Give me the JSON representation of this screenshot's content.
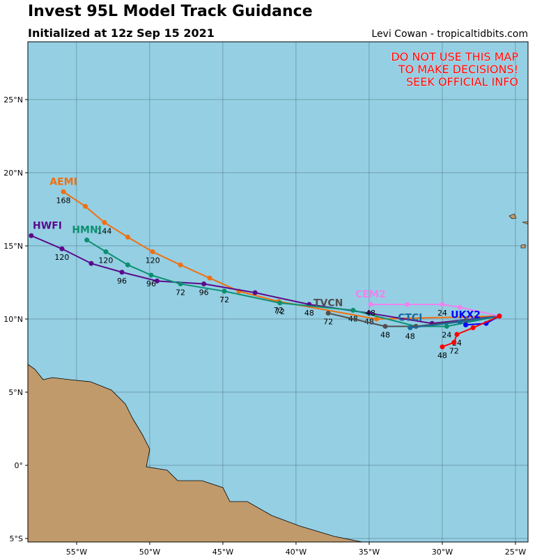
{
  "header": {
    "title": "Invest 95L Model Track Guidance",
    "subtitle": "Initialized at 12z Sep 15 2021",
    "credit": "Levi Cowan - tropicaltidbits.com"
  },
  "warning": [
    "DO NOT USE THIS MAP",
    "TO MAKE DECISIONS!",
    "SEEK OFFICIAL INFO"
  ],
  "map": {
    "lon_range": [
      -58.33,
      -24.14
    ],
    "lat_range": [
      -5.24,
      28.95
    ],
    "lon_ticks": [
      {
        "value": -55,
        "label": "55°W"
      },
      {
        "value": -50,
        "label": "50°W"
      },
      {
        "value": -45,
        "label": "45°W"
      },
      {
        "value": -40,
        "label": "40°W"
      },
      {
        "value": -35,
        "label": "35°W"
      },
      {
        "value": -30,
        "label": "30°W"
      },
      {
        "value": -25,
        "label": "25°W"
      }
    ],
    "lat_ticks": [
      {
        "value": -5,
        "label": "5°S"
      },
      {
        "value": 0,
        "label": "0°"
      },
      {
        "value": 5,
        "label": "5°N"
      },
      {
        "value": 10,
        "label": "10°N"
      },
      {
        "value": 15,
        "label": "15°N"
      },
      {
        "value": 20,
        "label": "20°N"
      },
      {
        "value": 25,
        "label": "25°N"
      }
    ]
  },
  "tracks": [
    {
      "name": "AEMI",
      "color": "#f07010",
      "lon": [
        -26.1,
        -34.5,
        -41.2,
        -43.9,
        -45.9,
        -47.9,
        -49.8,
        -51.5,
        -53.1,
        -54.4,
        -55.9
      ],
      "lat": [
        10.2,
        10.0,
        11.2,
        11.9,
        12.8,
        13.7,
        14.6,
        15.6,
        16.6,
        17.7,
        18.7
      ],
      "hour_labels": [
        null,
        null,
        "72",
        null,
        null,
        null,
        "120",
        null,
        "144",
        null,
        "168"
      ]
    },
    {
      "name": "HWFI",
      "color": "#5a0a8c",
      "lon": [
        -26.1,
        -30.7,
        -35.0,
        -39.1,
        -42.8,
        -46.3,
        -49.5,
        -51.9,
        -54.0,
        -56.0,
        -58.1
      ],
      "lat": [
        10.2,
        9.7,
        10.4,
        11.0,
        11.8,
        12.4,
        12.6,
        13.2,
        13.8,
        14.8,
        15.7
      ],
      "hour_labels": [
        null,
        null,
        "48",
        "48",
        null,
        "96",
        null,
        "96",
        null,
        "120",
        null
      ]
    },
    {
      "name": "HMNI",
      "color": "#0a9070",
      "lon": [
        -26.1,
        -29.7,
        -31.8,
        -36.1,
        -41.1,
        -44.9,
        -47.9,
        -49.9,
        -51.5,
        -53.0,
        -54.3
      ],
      "lat": [
        10.2,
        9.5,
        9.5,
        10.6,
        11.1,
        11.9,
        12.4,
        13.0,
        13.7,
        14.6,
        15.4
      ],
      "hour_labels": [
        null,
        "24",
        null,
        "48",
        "72",
        "72",
        "72",
        "96",
        null,
        "120",
        null
      ]
    },
    {
      "name": "TVCN",
      "color": "#505050",
      "lon": [
        -26.1,
        -28.4,
        -31.8,
        -33.9,
        -37.8
      ],
      "lat": [
        10.2,
        9.9,
        9.5,
        9.5,
        10.4
      ],
      "hour_labels": [
        null,
        null,
        null,
        "48",
        "72"
      ]
    },
    {
      "name": "CTCI",
      "color": "#1a6aa0",
      "lon": [
        -26.1,
        -28.8,
        -32.2
      ],
      "lat": [
        10.2,
        9.8,
        9.4
      ],
      "hour_labels": [
        null,
        null,
        "48"
      ]
    },
    {
      "name": "CEM2",
      "color": "#ee82ee",
      "lon": [
        -26.1,
        -28.8,
        -30.0,
        -32.4,
        -34.9
      ],
      "lat": [
        10.2,
        10.8,
        11.0,
        11.0,
        11.0
      ],
      "hour_labels": [
        null,
        null,
        "24",
        null,
        "48"
      ]
    },
    {
      "name": "UKX2",
      "color": "#0000ff",
      "lon": [
        -26.1,
        -27.0,
        -28.4
      ],
      "lat": [
        10.2,
        9.7,
        9.6
      ],
      "hour_labels": [
        null,
        null,
        null
      ]
    },
    {
      "color": "#ff0000",
      "lon": [
        -26.1,
        -27.9,
        -29.0,
        -29.2,
        -30.0
      ],
      "lat": [
        10.2,
        9.4,
        8.95,
        8.4,
        8.1
      ],
      "hour_labels": [
        null,
        null,
        "24",
        "72",
        "48"
      ]
    }
  ]
}
